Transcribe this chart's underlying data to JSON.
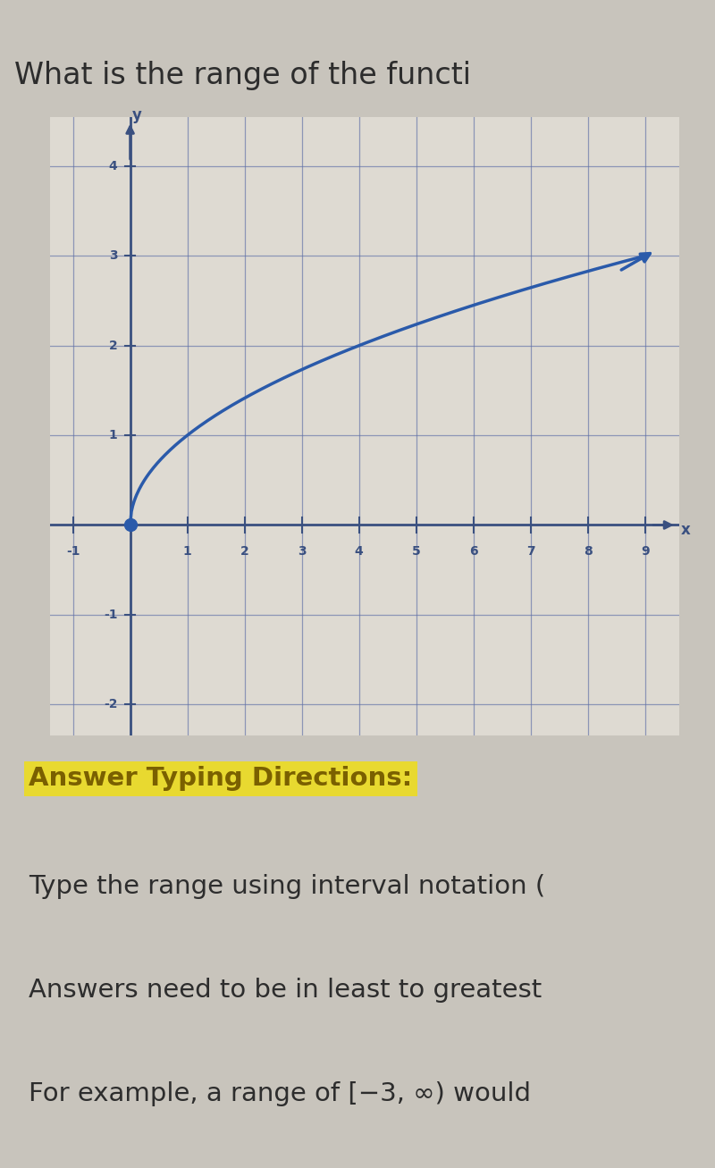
{
  "title": "What is the range of the functi",
  "title_fontsize": 24,
  "title_color": "#2d2d2d",
  "background_color": "#c8c4bc",
  "graph_bg_color": "#dedad2",
  "grid_color": "#6070a8",
  "axis_color": "#3a5080",
  "curve_color": "#2a5aaa",
  "dot_color": "#2a5aaa",
  "xmin": -1,
  "xmax": 9,
  "ymin": -2,
  "ymax": 4,
  "dot_x": 0,
  "dot_y": 0,
  "answer_heading": "Answer Typing Directions:",
  "answer_heading_color": "#7a6000",
  "answer_heading_bg": "#e8d930",
  "answer_heading_fontsize": 21,
  "line1": "Type the range using interval notation (",
  "line2": "Answers need to be in least to greatest",
  "line3": "For example, a range of [−3, ∞) would",
  "text_fontsize": 21,
  "text_color": "#2d2d2d"
}
